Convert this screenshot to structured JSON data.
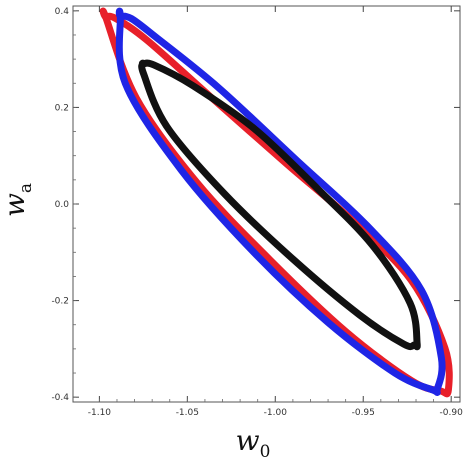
{
  "chart_data": {
    "type": "line",
    "title": "",
    "xlabel": "w",
    "xlabel_sub": "0",
    "ylabel": "w",
    "ylabel_sub": "a",
    "xlim": [
      -1.115,
      -0.895
    ],
    "ylim": [
      -0.41,
      0.41
    ],
    "x_ticks": [
      -1.1,
      -1.05,
      -1.0,
      -0.95,
      -0.9
    ],
    "x_tick_labels": [
      "-1.10",
      "-1.05",
      "-1.00",
      "-0.95",
      "-0.90"
    ],
    "y_ticks": [
      -0.4,
      -0.2,
      0.0,
      0.2,
      0.4
    ],
    "y_tick_labels": [
      "-0.4",
      "-0.2",
      "0.0",
      "0.2",
      "0.4"
    ],
    "grid": false,
    "legend": "none",
    "series": [
      {
        "color": "#e8202a",
        "shape": "ellipse",
        "x": [
          -1.0964,
          -1.0912,
          -1.0732,
          -1.0371,
          -0.9941,
          -0.956,
          -0.9229,
          -0.9036,
          -0.9016,
          -0.9061,
          -0.9225,
          -0.9596,
          -1.0032,
          -1.0447,
          -1.0791,
          -1.0964
        ],
        "y": [
          0.387,
          0.385,
          0.34,
          0.223,
          0.085,
          -0.035,
          -0.157,
          -0.298,
          -0.385,
          -0.387,
          -0.366,
          -0.265,
          -0.115,
          0.045,
          0.22,
          0.387
        ]
      },
      {
        "color": "#1f25e6",
        "shape": "ellipse",
        "x": [
          -1.0881,
          -1.0818,
          -1.0677,
          -1.032,
          -0.9877,
          -0.9478,
          -0.917,
          -0.9056,
          -0.9079,
          -0.9105,
          -0.932,
          -0.9701,
          -1.0122,
          -1.0534,
          -1.0853,
          -1.0881
        ],
        "y": [
          0.389,
          0.384,
          0.345,
          0.24,
          0.09,
          -0.045,
          -0.178,
          -0.318,
          -0.383,
          -0.385,
          -0.35,
          -0.245,
          -0.1,
          0.07,
          0.25,
          0.389
        ]
      },
      {
        "color": "#111111",
        "shape": "ellipse",
        "x": [
          -1.0751,
          -1.069,
          -1.0468,
          -1.0116,
          -0.9755,
          -0.9449,
          -0.9234,
          -0.9194,
          -0.921,
          -0.927,
          -0.952,
          -0.9897,
          -1.0286,
          -1.0616,
          -1.0749,
          -1.0751
        ],
        "y": [
          0.29,
          0.288,
          0.245,
          0.155,
          0.03,
          -0.085,
          -0.205,
          -0.288,
          -0.292,
          -0.29,
          -0.23,
          -0.115,
          0.02,
          0.16,
          0.27,
          0.29
        ]
      }
    ]
  }
}
